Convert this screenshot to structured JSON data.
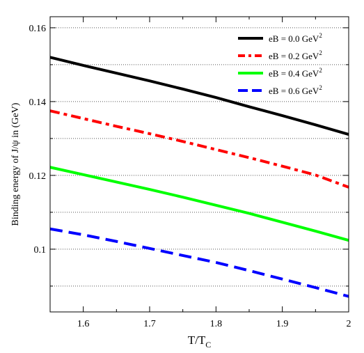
{
  "chart_data": {
    "type": "line",
    "xlabel": "T/T",
    "xlabel_sub": "C",
    "ylabel": "Binding energy of J/ψ in (GeV)",
    "xlim": [
      1.55,
      2.0
    ],
    "ylim": [
      0.083,
      0.163
    ],
    "xticks": [
      "1.6",
      "1.7",
      "1.8",
      "1.9",
      "2"
    ],
    "xtick_values": [
      1.6,
      1.7,
      1.8,
      1.9,
      2.0
    ],
    "yticks": [
      "0.1",
      "0.12",
      "0.14",
      "0.16"
    ],
    "ytick_values": [
      0.1,
      0.12,
      0.14,
      0.16
    ],
    "grid": "horizontal dotted",
    "legend_position": "top-right",
    "legend_unit": "GeV",
    "legend_unit_sup": "2",
    "series": [
      {
        "name": "eB = 0.0 GeV",
        "color": "#000000",
        "style": "solid",
        "x": [
          1.55,
          1.6,
          1.65,
          1.7,
          1.75,
          1.8,
          1.85,
          1.9,
          1.95,
          2.0
        ],
        "y": [
          0.152,
          0.1498,
          0.1477,
          0.1456,
          0.1434,
          0.1411,
          0.1386,
          0.1362,
          0.1337,
          0.1311
        ]
      },
      {
        "name": "eB = 0.2 GeV",
        "color": "#ff0000",
        "style": "dash-dot",
        "x": [
          1.55,
          1.6,
          1.65,
          1.7,
          1.75,
          1.8,
          1.85,
          1.9,
          1.95,
          2.0
        ],
        "y": [
          0.1375,
          0.1354,
          0.1333,
          0.1313,
          0.1292,
          0.127,
          0.1248,
          0.1225,
          0.1201,
          0.1168
        ]
      },
      {
        "name": "eB = 0.4 GeV",
        "color": "#00ff00",
        "style": "solid",
        "x": [
          1.55,
          1.6,
          1.65,
          1.7,
          1.75,
          1.8,
          1.85,
          1.9,
          1.95,
          2.0
        ],
        "y": [
          0.1222,
          0.1202,
          0.1182,
          0.1162,
          0.1141,
          0.1119,
          0.1097,
          0.1073,
          0.1049,
          0.1024
        ]
      },
      {
        "name": "eB = 0.6 GeV",
        "color": "#0000ff",
        "style": "dashed",
        "x": [
          1.55,
          1.6,
          1.65,
          1.7,
          1.75,
          1.8,
          1.85,
          1.9,
          1.95,
          2.0
        ],
        "y": [
          0.1055,
          0.1039,
          0.1021,
          0.1002,
          0.0983,
          0.0964,
          0.0942,
          0.0919,
          0.0896,
          0.0872
        ]
      }
    ]
  }
}
